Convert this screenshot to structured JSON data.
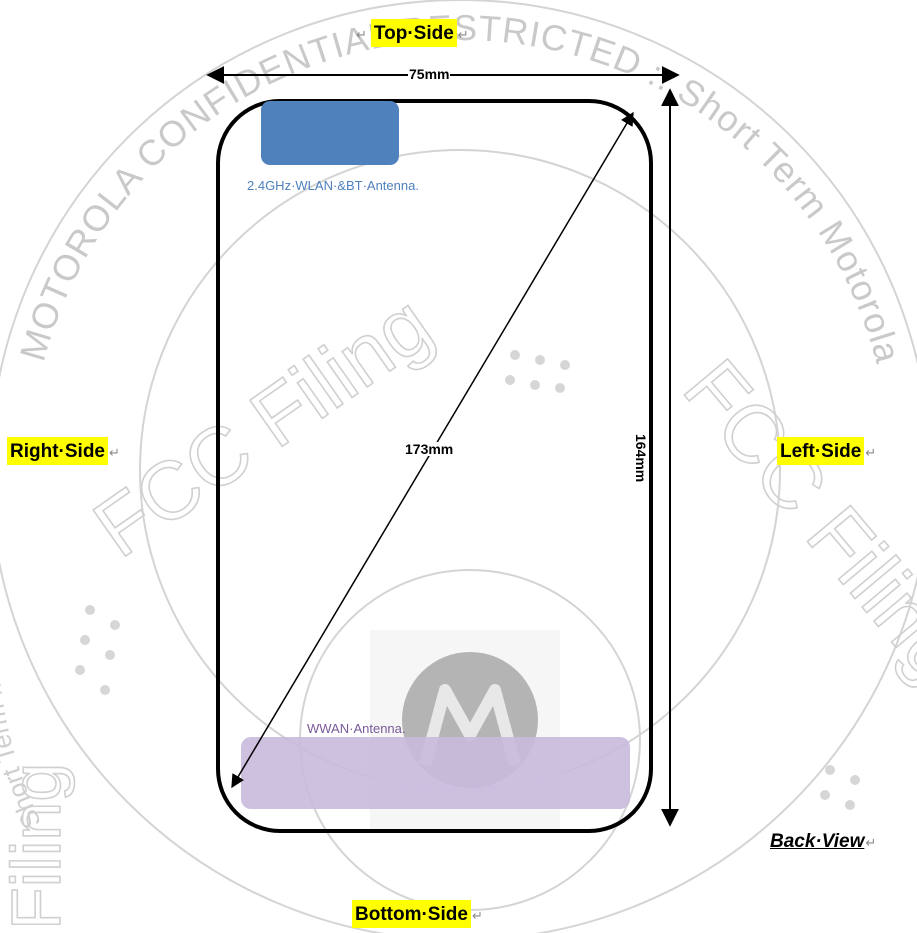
{
  "labels": {
    "top_side": "Top·Side",
    "bottom_side": "Bottom·Side",
    "right_side": "Right·Side",
    "left_side": "Left·Side",
    "back_view": "Back·View",
    "paragraph_mark": "↵"
  },
  "dimensions": {
    "width": "75mm",
    "height": "164mm",
    "diagonal": "173mm"
  },
  "antennas": {
    "wlan_bt": "2.4GHz·WLAN·&BT·Antenna.",
    "wwan": "WWAN·Antenna."
  },
  "watermark": {
    "arc_text": "MOTOROLA CONFIDENTIAL RESTRICTED :: Short Term Motorola",
    "fcc_filing": "FCC Filing",
    "bottom_left": "Filing",
    "arc_text_left": "Short Term Motorola"
  },
  "colors": {
    "highlight": "#ffff00",
    "wlan_antenna": "#4f81bd",
    "wwan_antenna": "#c9b9dc",
    "wlan_text": "#4f81bd",
    "wwan_text": "#7a5a9a",
    "watermark": "#cfcfcf"
  }
}
